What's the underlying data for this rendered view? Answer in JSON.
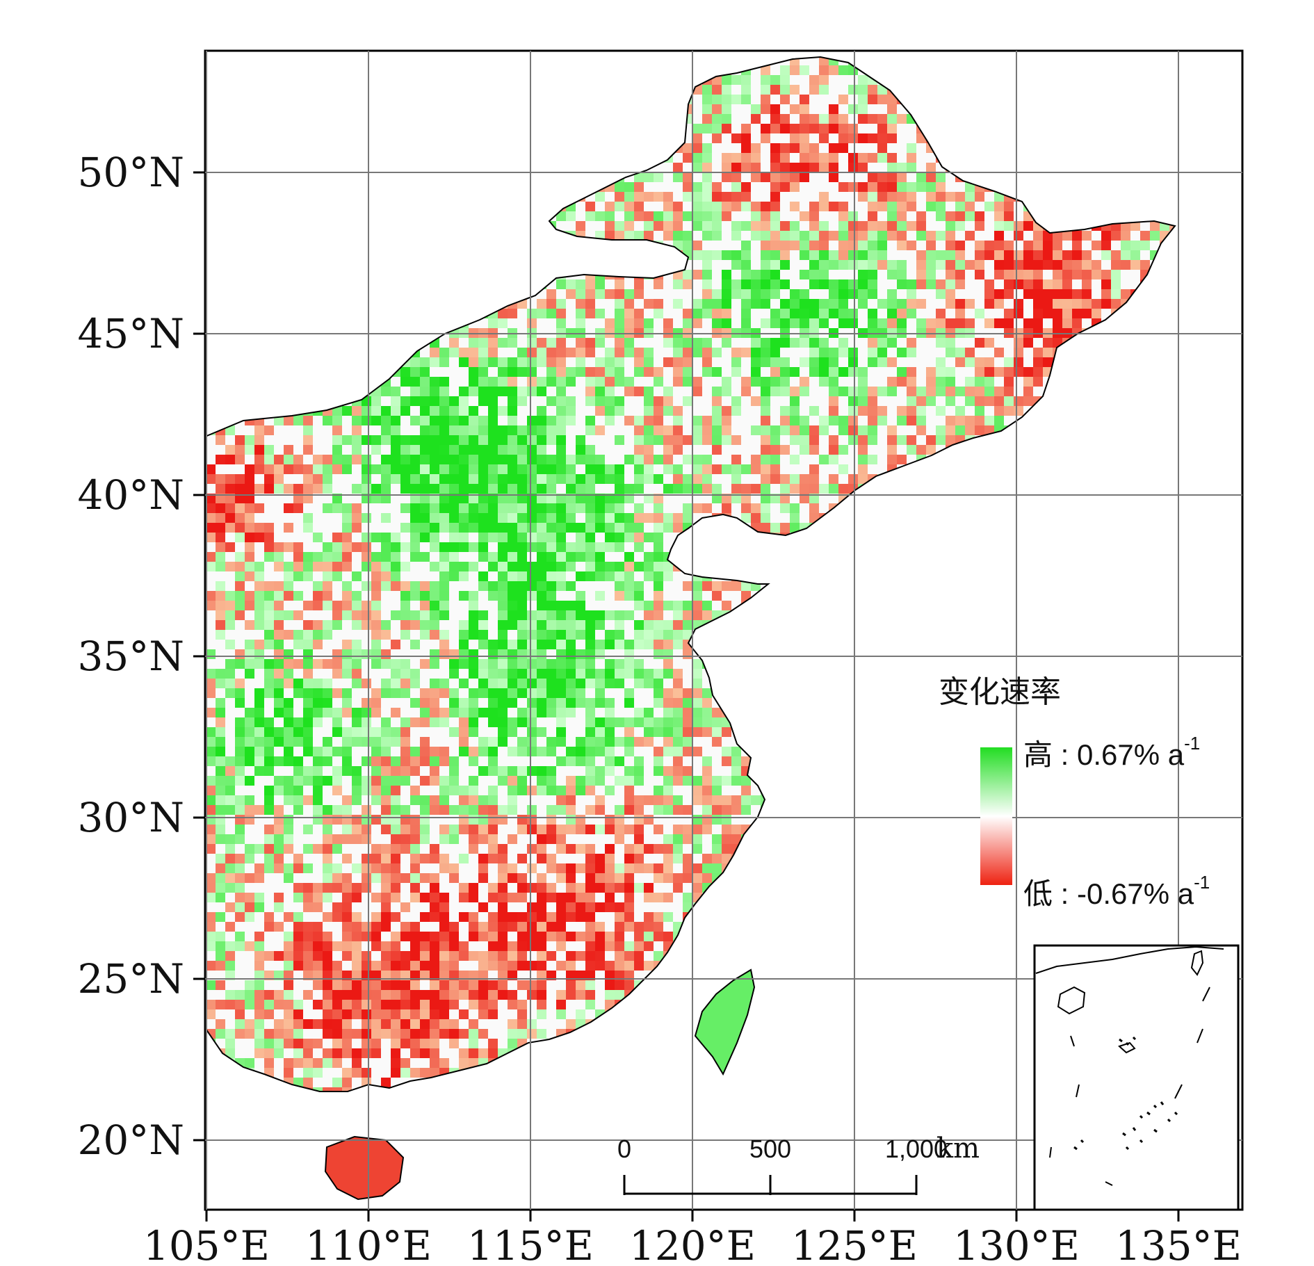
{
  "map": {
    "lon_labels": [
      "105°E",
      "110°E",
      "115°E",
      "120°E",
      "125°E",
      "130°E",
      "135°E"
    ],
    "lat_labels": [
      "50°N",
      "45°N",
      "40°N",
      "35°N",
      "30°N",
      "25°N",
      "20°N"
    ]
  },
  "legend": {
    "title": "变化速率",
    "high_label": "高 : 0.67% a",
    "high_exponent": "-1",
    "low_label": "低 : -0.67% a",
    "low_exponent": "-1",
    "colors": {
      "high": "#22dd22",
      "mid": "#ffffff",
      "low": "#ee2211"
    }
  },
  "scale_bar": {
    "ticks": [
      "0",
      "500",
      "1,000"
    ],
    "unit": "km"
  }
}
